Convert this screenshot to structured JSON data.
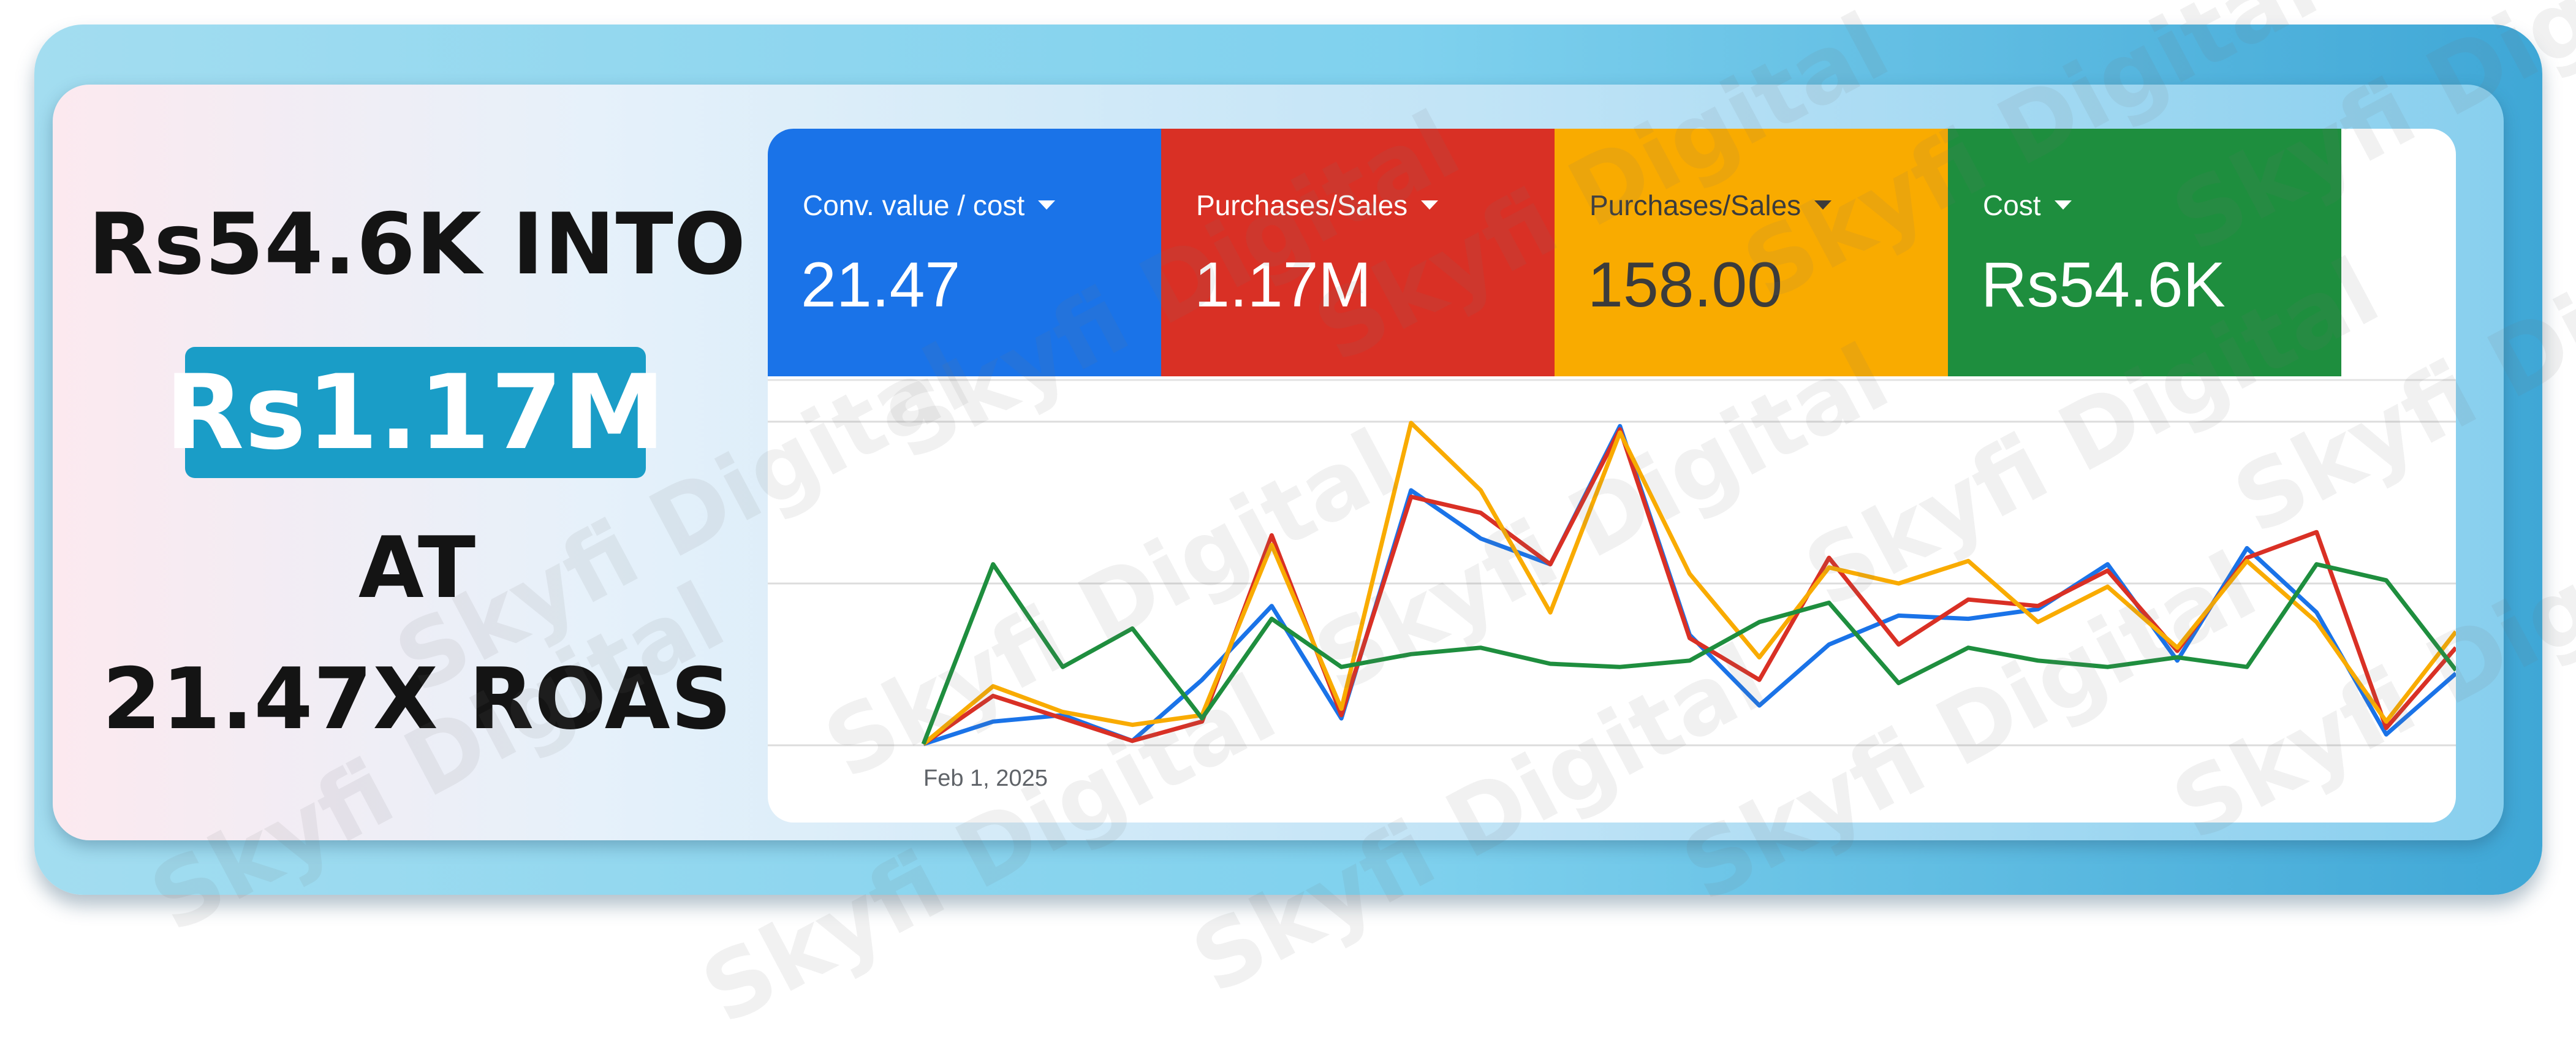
{
  "headline": {
    "line1": "Rs54.6K INTO",
    "highlight": "Rs1.17M",
    "line3": "AT",
    "line4": "21.47X ROAS"
  },
  "watermark": "Skyfi Digital",
  "colors": {
    "blue": "#1a73e8",
    "red": "#d93025",
    "yellow": "#f9ab00",
    "green": "#1e8e3e",
    "highlight": "#1a9dc7"
  },
  "metrics": [
    {
      "label": "Conv. value / cost",
      "value": "21.47",
      "color": "#1a73e8"
    },
    {
      "label": "Purchases/Sales",
      "value": "1.17M",
      "color": "#d93025"
    },
    {
      "label": "Purchases/Sales",
      "value": "158.00",
      "color": "#f9ab00"
    },
    {
      "label": "Cost",
      "value": "Rs54.6K",
      "color": "#1e8e3e"
    }
  ],
  "chart_data": {
    "type": "line",
    "x_tick_label": "Feb 1, 2025",
    "ylim": [
      0,
      100
    ],
    "grid": true,
    "legend": "none",
    "series": [
      {
        "color": "#1a73e8",
        "values": [
          0,
          7,
          9,
          1,
          20,
          43,
          8,
          79,
          64,
          56,
          99,
          34,
          12,
          31,
          40,
          39,
          42,
          56,
          26,
          61,
          41,
          3,
          22
        ]
      },
      {
        "color": "#d93025",
        "values": [
          0,
          15,
          8,
          1,
          7,
          65,
          9,
          77,
          72,
          56,
          98,
          33,
          20,
          58,
          31,
          45,
          43,
          54,
          29,
          58,
          66,
          5,
          30
        ]
      },
      {
        "color": "#f9ab00",
        "values": [
          0,
          18,
          10,
          6,
          9,
          62,
          11,
          100,
          79,
          41,
          97,
          53,
          27,
          55,
          50,
          57,
          38,
          49,
          30,
          57,
          38,
          7,
          35
        ]
      },
      {
        "color": "#1e8e3e",
        "values": [
          0,
          56,
          24,
          36,
          8,
          39,
          24,
          28,
          30,
          25,
          24,
          26,
          38,
          44,
          19,
          30,
          26,
          24,
          27,
          24,
          56,
          51,
          23
        ]
      }
    ]
  }
}
